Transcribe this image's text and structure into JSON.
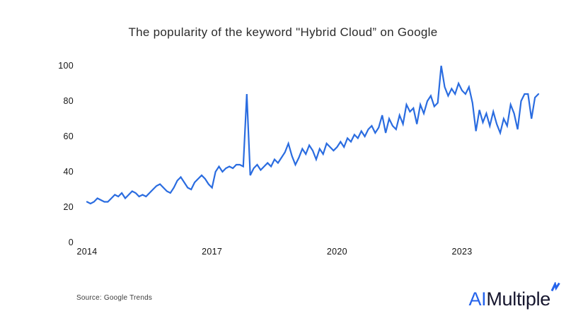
{
  "title": "The popularity of the keyword \"Hybrid Cloud” on Google",
  "source_note": "Source: Google Trends",
  "logo": {
    "prefix": "AI",
    "suffix": "Multiple",
    "prefix_color": "#2563eb",
    "suffix_color": "#16162e",
    "bolt_color": "#2563eb"
  },
  "chart_data": {
    "type": "line",
    "title": "The popularity of the keyword \"Hybrid Cloud” on Google",
    "x_unit": "month",
    "x_start": "2014-01",
    "x_end": "2024-11",
    "xtick_labels": [
      "2014",
      "2017",
      "2020",
      "2023"
    ],
    "xtick_indices": [
      0,
      36,
      72,
      108
    ],
    "yticks": [
      0,
      20,
      40,
      60,
      80,
      100
    ],
    "ylim": [
      0,
      100
    ],
    "grid": false,
    "legend": "none",
    "line_color": "#2a6ce0",
    "values": [
      23,
      22,
      23,
      25,
      24,
      23,
      23,
      25,
      27,
      26,
      28,
      25,
      27,
      29,
      28,
      26,
      27,
      26,
      28,
      30,
      32,
      33,
      31,
      29,
      28,
      31,
      35,
      37,
      34,
      31,
      30,
      34,
      36,
      38,
      36,
      33,
      31,
      40,
      43,
      40,
      42,
      43,
      42,
      44,
      44,
      43,
      84,
      38,
      42,
      44,
      41,
      43,
      45,
      43,
      47,
      45,
      48,
      51,
      56,
      49,
      44,
      48,
      53,
      50,
      55,
      52,
      47,
      53,
      50,
      56,
      54,
      52,
      54,
      57,
      54,
      59,
      57,
      61,
      59,
      63,
      60,
      64,
      66,
      62,
      65,
      72,
      62,
      70,
      66,
      64,
      72,
      67,
      78,
      74,
      76,
      67,
      78,
      73,
      80,
      83,
      77,
      79,
      100,
      88,
      83,
      87,
      84,
      90,
      86,
      84,
      88,
      79,
      63,
      75,
      68,
      73,
      66,
      74,
      67,
      62,
      70,
      66,
      78,
      73,
      64,
      80,
      84,
      84,
      70,
      82,
      84
    ]
  }
}
